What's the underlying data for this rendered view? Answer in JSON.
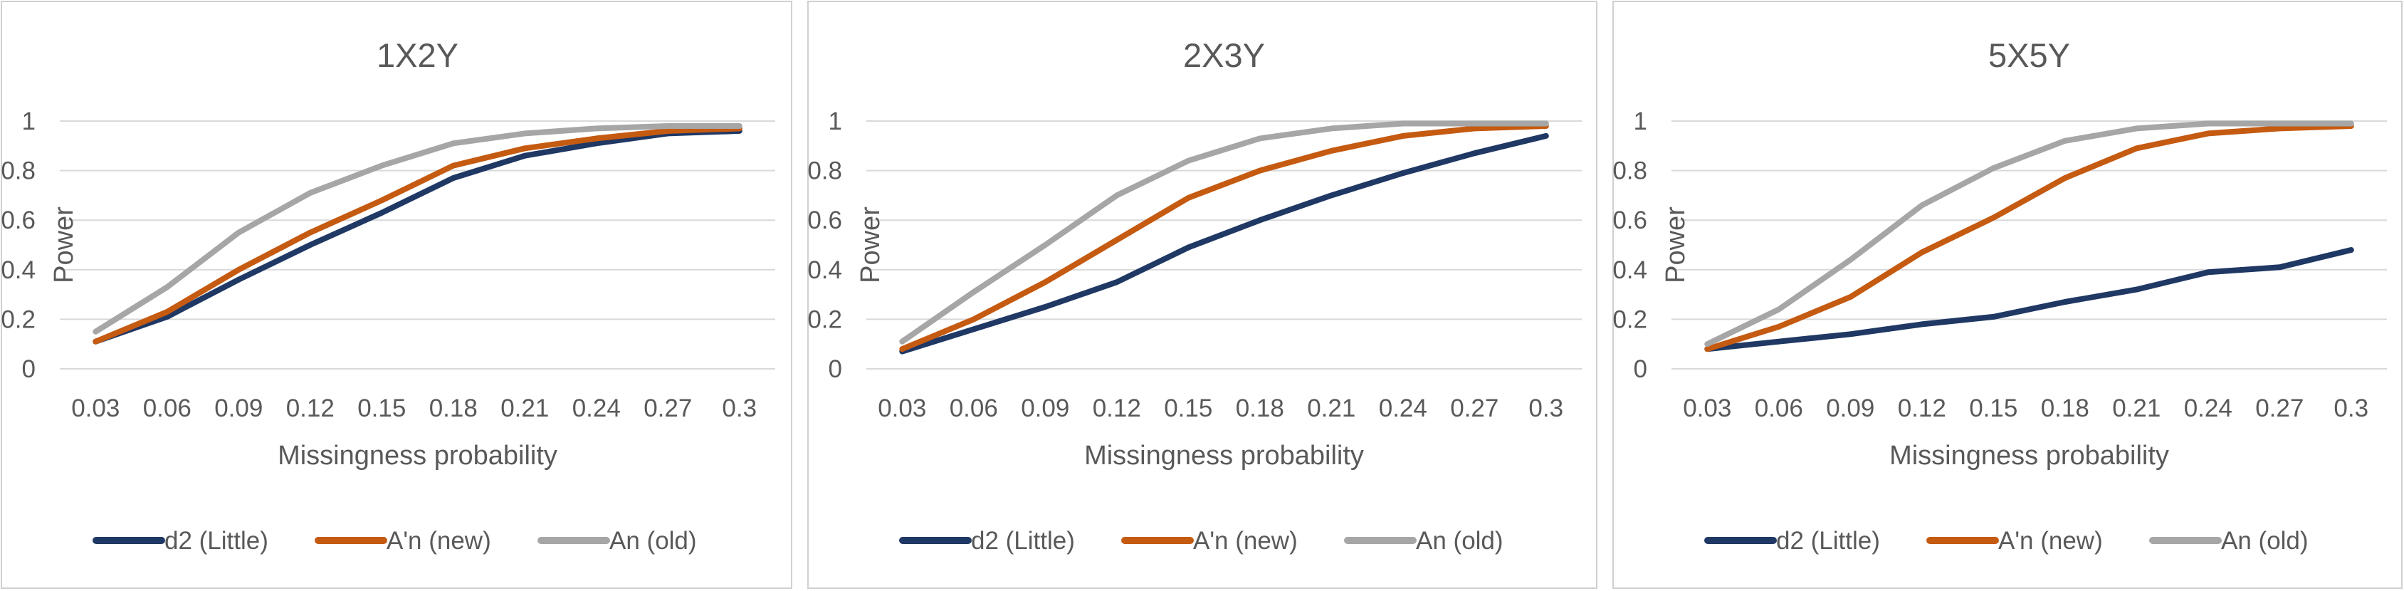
{
  "chart_data": [
    {
      "type": "line",
      "title": "1X2Y",
      "xlabel": "Missingness probability",
      "ylabel": "Power",
      "categories": [
        "0.03",
        "0.06",
        "0.09",
        "0.12",
        "0.15",
        "0.18",
        "0.21",
        "0.24",
        "0.27",
        "0.3"
      ],
      "ylim": [
        0,
        1
      ],
      "yticks": [
        "0",
        "0.2",
        "0.4",
        "0.6",
        "0.8",
        "1"
      ],
      "grid": true,
      "legend": "bottom",
      "series": [
        {
          "name": "d2 (Little)",
          "color": "#1f3864",
          "values": [
            0.11,
            0.21,
            0.36,
            0.5,
            0.63,
            0.77,
            0.86,
            0.91,
            0.95,
            0.96
          ]
        },
        {
          "name": "A'n (new)",
          "color": "#c55a11",
          "values": [
            0.11,
            0.23,
            0.4,
            0.55,
            0.68,
            0.82,
            0.89,
            0.93,
            0.96,
            0.97
          ]
        },
        {
          "name": "An (old)",
          "color": "#a6a6a6",
          "values": [
            0.15,
            0.33,
            0.55,
            0.71,
            0.82,
            0.91,
            0.95,
            0.97,
            0.98,
            0.98
          ]
        }
      ]
    },
    {
      "type": "line",
      "title": "2X3Y",
      "xlabel": "Missingness probability",
      "ylabel": "Power",
      "categories": [
        "0.03",
        "0.06",
        "0.09",
        "0.12",
        "0.15",
        "0.18",
        "0.21",
        "0.24",
        "0.27",
        "0.3"
      ],
      "ylim": [
        0,
        1
      ],
      "yticks": [
        "0",
        "0.2",
        "0.4",
        "0.6",
        "0.8",
        "1"
      ],
      "grid": true,
      "legend": "bottom",
      "series": [
        {
          "name": "d2 (Little)",
          "color": "#1f3864",
          "values": [
            0.07,
            0.16,
            0.25,
            0.35,
            0.49,
            0.6,
            0.7,
            0.79,
            0.87,
            0.94
          ]
        },
        {
          "name": "A'n (new)",
          "color": "#c55a11",
          "values": [
            0.08,
            0.2,
            0.35,
            0.52,
            0.69,
            0.8,
            0.88,
            0.94,
            0.97,
            0.98
          ]
        },
        {
          "name": "An (old)",
          "color": "#a6a6a6",
          "values": [
            0.11,
            0.31,
            0.5,
            0.7,
            0.84,
            0.93,
            0.97,
            0.99,
            0.99,
            0.99
          ]
        }
      ]
    },
    {
      "type": "line",
      "title": "5X5Y",
      "xlabel": "Missingness probability",
      "ylabel": "Power",
      "categories": [
        "0.03",
        "0.06",
        "0.09",
        "0.12",
        "0.15",
        "0.18",
        "0.21",
        "0.24",
        "0.27",
        "0.3"
      ],
      "ylim": [
        0,
        1
      ],
      "yticks": [
        "0",
        "0.2",
        "0.4",
        "0.6",
        "0.8",
        "1"
      ],
      "grid": true,
      "legend": "bottom",
      "series": [
        {
          "name": "d2 (Little)",
          "color": "#1f3864",
          "values": [
            0.08,
            0.11,
            0.14,
            0.18,
            0.21,
            0.27,
            0.32,
            0.39,
            0.41,
            0.48
          ]
        },
        {
          "name": "A'n (new)",
          "color": "#c55a11",
          "values": [
            0.08,
            0.17,
            0.29,
            0.47,
            0.61,
            0.77,
            0.89,
            0.95,
            0.97,
            0.98
          ]
        },
        {
          "name": "An (old)",
          "color": "#a6a6a6",
          "values": [
            0.1,
            0.24,
            0.44,
            0.66,
            0.81,
            0.92,
            0.97,
            0.99,
            0.99,
            0.99
          ]
        }
      ]
    }
  ]
}
